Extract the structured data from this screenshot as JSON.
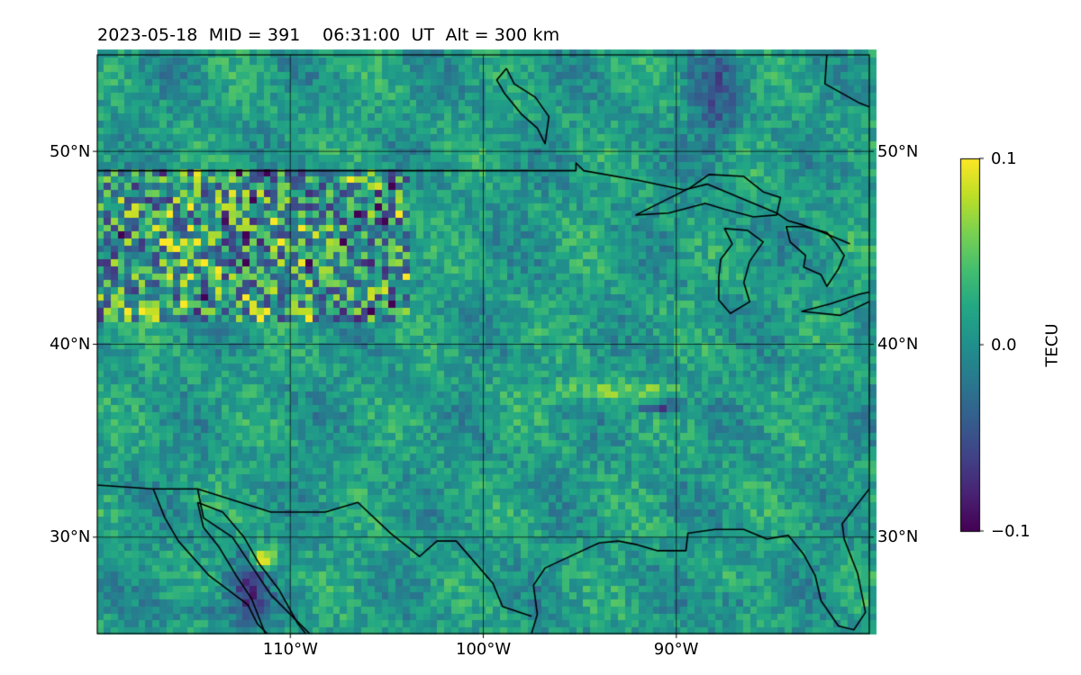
{
  "title": "2023-05-18  MID = 391    06:31:00  UT  Alt = 300 km",
  "colors": {
    "land_outline": "#000000",
    "gridlines": "#000000",
    "colormap": "viridis"
  },
  "chart_data": {
    "type": "heatmap",
    "title": "2023-05-18  MID = 391    06:31:00  UT  Alt = 300 km",
    "projection": "plate carree map of North America",
    "x_axis": {
      "label": "",
      "range_deg_lon": [
        -120,
        -80
      ],
      "ticks": [
        {
          "value": -110,
          "label": "110°W"
        },
        {
          "value": -100,
          "label": "100°W"
        },
        {
          "value": -90,
          "label": "90°W"
        }
      ]
    },
    "y_axis": {
      "label": "",
      "range_deg_lat": [
        25,
        55
      ],
      "ticks": [
        {
          "value": 30,
          "label": "30°N"
        },
        {
          "value": 40,
          "label": "40°N"
        },
        {
          "value": 50,
          "label": "50°N"
        }
      ],
      "labels_on_both_sides": true
    },
    "grid": true,
    "colorbar": {
      "label": "TECU",
      "min": -0.1,
      "max": 0.1,
      "ticks": [
        {
          "value": 0.1,
          "label": "0.1"
        },
        {
          "value": 0.0,
          "label": "0.0"
        },
        {
          "value": -0.1,
          "label": "−0.1"
        }
      ],
      "placement": "right"
    },
    "field_summary": {
      "background_value": 0.0,
      "notes": [
        "Mostly near-zero (teal/green) perturbation field with fine-scale noise",
        "Noisy yellow/purple speckle over northern plains 42-48N, 105-120W",
        "Band of positive values near 37-38N from 97W to 90W",
        "Negative patch near 36.5N, 91W",
        "Negative values along Baja California / Gulf of California near 27-29N",
        "Strong positive spot near 29N, 111W",
        "Broad negative streak near 50-55N, 87W"
      ]
    }
  }
}
